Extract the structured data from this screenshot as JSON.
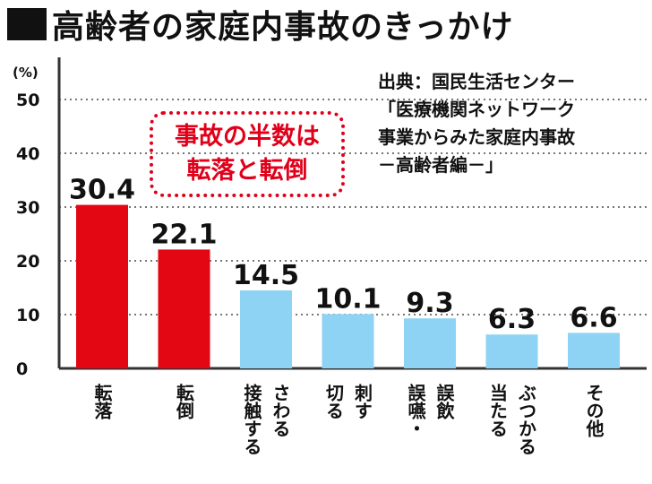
{
  "title": "高齢者の家庭内事故のきっかけ",
  "source_lines": [
    "出典：国民生活センター",
    "「医療機関ネットワーク",
    "事業からみた家庭内事故",
    "－高齢者編－」"
  ],
  "callout_lines": [
    "事故の半数は",
    "転落と転倒"
  ],
  "colors": {
    "red": "#e30613",
    "blue": "#8fd3f4",
    "axis": "#333333",
    "grid": "#777777",
    "callout": "#e0001a"
  },
  "chart_data": {
    "type": "bar",
    "title": "高齢者の家庭内事故のきっかけ",
    "ylabel": "(%)",
    "ylim": [
      0,
      50
    ],
    "yticks": [
      0,
      10,
      20,
      30,
      40,
      50
    ],
    "grid": true,
    "categories": [
      "転落",
      "転倒",
      "さわる 接触する",
      "刺す 切る",
      "誤飲 誤嚥・",
      "ぶつかる 当たる",
      "その他"
    ],
    "category_lines": [
      [
        "転落"
      ],
      [
        "転倒"
      ],
      [
        "さわる",
        "接触する"
      ],
      [
        "刺す",
        "切る"
      ],
      [
        "誤飲",
        "誤嚥・"
      ],
      [
        "ぶつかる",
        "当たる"
      ],
      [
        "その他"
      ]
    ],
    "values": [
      30.4,
      22.1,
      14.5,
      10.1,
      9.3,
      6.3,
      6.6
    ],
    "value_labels": [
      "30.4",
      "22.1",
      "14.5",
      "10.1",
      "9.3",
      "6.3",
      "6.6"
    ],
    "bar_colors": [
      "#e30613",
      "#e30613",
      "#8fd3f4",
      "#8fd3f4",
      "#8fd3f4",
      "#8fd3f4",
      "#8fd3f4"
    ]
  }
}
